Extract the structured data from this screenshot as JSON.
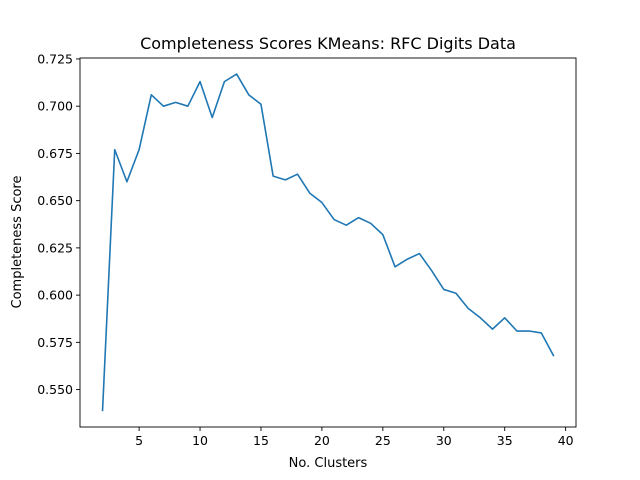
{
  "chart_data": {
    "type": "line",
    "title": "Completeness Scores KMeans: RFC Digits Data",
    "xlabel": "No. Clusters",
    "ylabel": "Completeness Score",
    "xlim": [
      0.15,
      40.85
    ],
    "ylim": [
      0.5302,
      0.7255
    ],
    "xticks": [
      5,
      10,
      15,
      20,
      25,
      30,
      35,
      40
    ],
    "xtick_labels": [
      "5",
      "10",
      "15",
      "20",
      "25",
      "30",
      "35",
      "40"
    ],
    "yticks": [
      0.55,
      0.575,
      0.6,
      0.625,
      0.65,
      0.675,
      0.7,
      0.725
    ],
    "ytick_labels": [
      "0.550",
      "0.575",
      "0.600",
      "0.625",
      "0.650",
      "0.675",
      "0.700",
      "0.725"
    ],
    "grid": false,
    "series": [
      {
        "color": "#1f77b4",
        "x": [
          2,
          3,
          4,
          5,
          6,
          7,
          8,
          9,
          10,
          11,
          12,
          13,
          14,
          15,
          16,
          17,
          18,
          19,
          20,
          21,
          22,
          23,
          24,
          25,
          26,
          27,
          28,
          29,
          30,
          31,
          32,
          33,
          34,
          35,
          36,
          37,
          38,
          39
        ],
        "y": [
          0.539,
          0.677,
          0.66,
          0.677,
          0.706,
          0.7,
          0.702,
          0.7,
          0.713,
          0.694,
          0.713,
          0.717,
          0.706,
          0.701,
          0.663,
          0.661,
          0.664,
          0.654,
          0.649,
          0.64,
          0.637,
          0.641,
          0.638,
          0.632,
          0.615,
          0.619,
          0.622,
          0.613,
          0.603,
          0.601,
          0.593,
          0.588,
          0.582,
          0.588,
          0.581,
          0.581,
          0.58,
          0.568
        ]
      }
    ]
  }
}
